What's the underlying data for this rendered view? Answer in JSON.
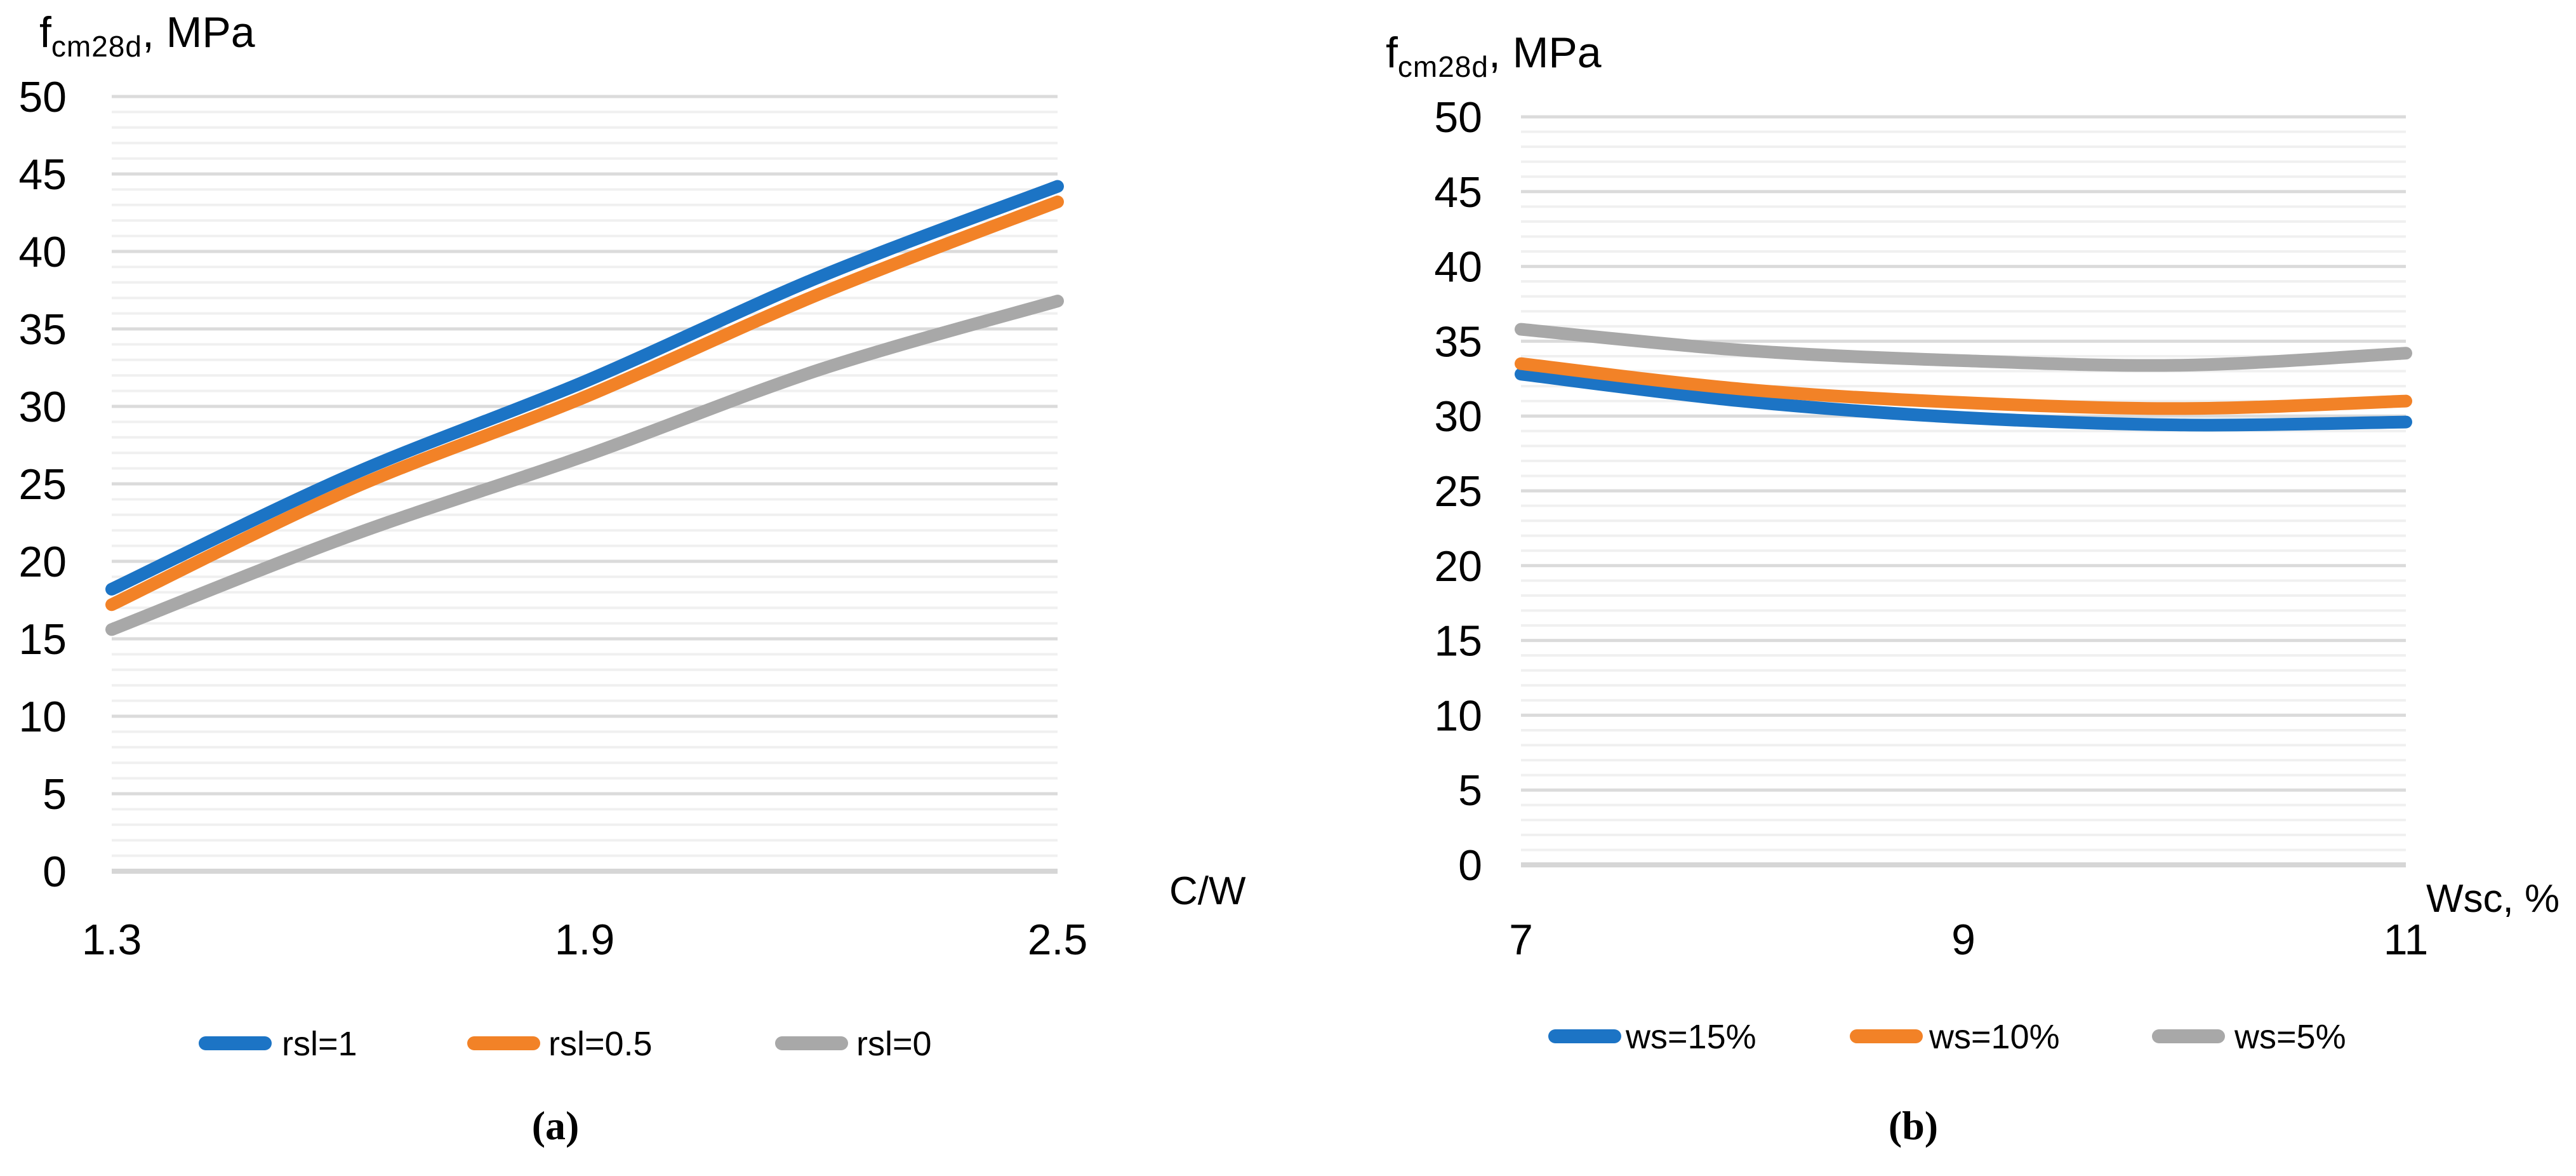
{
  "figure": {
    "charts": [
      {
        "caption": "(a)",
        "y_axis_title": {
          "base": "f",
          "sub": "cm28d",
          "rest": ", MPa"
        },
        "x_axis_title": "C/W",
        "x_tick_labels": [
          "1.3",
          "1.9",
          "2.5"
        ],
        "y_tick_labels": [
          "0",
          "5",
          "10",
          "15",
          "20",
          "25",
          "30",
          "35",
          "40",
          "45",
          "50"
        ],
        "legend_labels": [
          "rsl=1",
          "rsl=0.5",
          "rsl=0"
        ]
      },
      {
        "caption": "(b)",
        "y_axis_title": {
          "base": "f",
          "sub": "cm28d",
          "rest": ", MPa"
        },
        "x_axis_title": "Wsc, %",
        "x_tick_labels": [
          "7",
          "9",
          "11"
        ],
        "y_tick_labels": [
          "0",
          "5",
          "10",
          "15",
          "20",
          "25",
          "30",
          "35",
          "40",
          "45",
          "50"
        ],
        "legend_labels": [
          "ws=15%",
          "ws=10%",
          "ws=5%"
        ]
      }
    ]
  },
  "colors": {
    "series_blue": "#1C74C5",
    "series_orange": "#F28227",
    "series_gray": "#A8A8A8",
    "grid_major": "#DBDBDB",
    "grid_minor": "#F0F0F0",
    "axis_zero_line": "#D6D6D6",
    "text": "#000000"
  },
  "chart_data": [
    {
      "type": "line",
      "title": "f cm28d, MPa",
      "xlabel": "C/W",
      "ylabel": "f cm28d, MPa",
      "x": [
        1.3,
        1.6,
        1.9,
        2.2,
        2.5
      ],
      "x_tick_values": [
        1.3,
        1.9,
        2.5
      ],
      "xlim": [
        1.3,
        2.5
      ],
      "ylim": [
        0,
        50
      ],
      "y_major_step": 5,
      "y_minor_step": 1,
      "grid": "on",
      "legend_position": "bottom",
      "series": [
        {
          "name": "rsl=1",
          "color_key": "series_blue",
          "values": [
            18.2,
            25.5,
            31.6,
            38.4,
            44.2
          ]
        },
        {
          "name": "rsl=0.5",
          "color_key": "series_orange",
          "values": [
            17.2,
            24.6,
            30.6,
            37.3,
            43.2
          ]
        },
        {
          "name": "rsl=0",
          "color_key": "series_gray",
          "values": [
            15.6,
            21.6,
            26.8,
            32.4,
            36.8
          ]
        }
      ]
    },
    {
      "type": "line",
      "title": "f cm28d, MPa",
      "xlabel": "Wsc, %",
      "ylabel": "f cm28d, MPa",
      "x": [
        7,
        8,
        9,
        10,
        11
      ],
      "x_tick_values": [
        7,
        9,
        11
      ],
      "xlim": [
        7,
        11
      ],
      "ylim": [
        0,
        50
      ],
      "y_major_step": 5,
      "y_minor_step": 1,
      "grid": "on",
      "legend_position": "bottom",
      "series": [
        {
          "name": "ws=15%",
          "color_key": "series_blue",
          "values": [
            32.8,
            31.0,
            29.9,
            29.4,
            29.6
          ]
        },
        {
          "name": "ws=10%",
          "color_key": "series_orange",
          "values": [
            33.5,
            31.8,
            30.9,
            30.5,
            31.0
          ]
        },
        {
          "name": "ws=5%",
          "color_key": "series_gray",
          "values": [
            35.8,
            34.4,
            33.7,
            33.4,
            34.2
          ]
        }
      ]
    }
  ]
}
